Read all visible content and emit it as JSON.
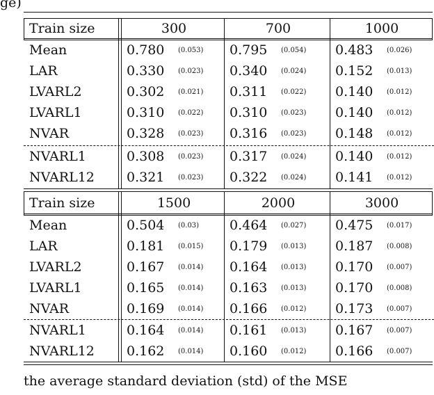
{
  "caption_top": "ge)",
  "caption_bottom": "the                average  standard  deviation  (std)  of  the  MSE",
  "tables": [
    {
      "header_label": "Train size",
      "sizes": [
        "300",
        "700",
        "1000"
      ],
      "rows": [
        {
          "label": "Mean",
          "vals": [
            "0.780",
            "0.795",
            "0.483"
          ],
          "sds": [
            "(0.053)",
            "(0.054)",
            "(0.026)"
          ]
        },
        {
          "label": "LAR",
          "vals": [
            "0.330",
            "0.340",
            "0.152"
          ],
          "sds": [
            "(0.023)",
            "(0.024)",
            "(0.013)"
          ]
        },
        {
          "label": "LVARL2",
          "vals": [
            "0.302",
            "0.311",
            "0.140"
          ],
          "sds": [
            "(0.021)",
            "(0.022)",
            "(0.012)"
          ]
        },
        {
          "label": "LVARL1",
          "vals": [
            "0.310",
            "0.310",
            "0.140"
          ],
          "sds": [
            "(0.022)",
            "(0.023)",
            "(0.012)"
          ]
        },
        {
          "label": "NVAR",
          "vals": [
            "0.328",
            "0.316",
            "0.148"
          ],
          "sds": [
            "(0.023)",
            "(0.023)",
            "(0.012)"
          ]
        },
        {
          "label": "NVARL1",
          "vals": [
            "0.308",
            "0.317",
            "0.140"
          ],
          "sds": [
            "(0.023)",
            "(0.024)",
            "(0.012)"
          ]
        },
        {
          "label": "NVARL12",
          "vals": [
            "0.321",
            "0.322",
            "0.141"
          ],
          "sds": [
            "(0.023)",
            "(0.024)",
            "(0.012)"
          ]
        }
      ]
    },
    {
      "header_label": "Train size",
      "sizes": [
        "1500",
        "2000",
        "3000"
      ],
      "rows": [
        {
          "label": "Mean",
          "vals": [
            "0.504",
            "0.464",
            "0.475"
          ],
          "sds": [
            "(0.03)",
            "(0.027)",
            "(0.017)"
          ]
        },
        {
          "label": "LAR",
          "vals": [
            "0.181",
            "0.179",
            "0.187"
          ],
          "sds": [
            "(0.015)",
            "(0.013)",
            "(0.008)"
          ]
        },
        {
          "label": "LVARL2",
          "vals": [
            "0.167",
            "0.164",
            "0.170"
          ],
          "sds": [
            "(0.014)",
            "(0.013)",
            "(0.007)"
          ]
        },
        {
          "label": "LVARL1",
          "vals": [
            "0.165",
            "0.163",
            "0.170"
          ],
          "sds": [
            "(0.014)",
            "(0.013)",
            "(0.008)"
          ]
        },
        {
          "label": "NVAR",
          "vals": [
            "0.169",
            "0.166",
            "0.173"
          ],
          "sds": [
            "(0.014)",
            "(0.012)",
            "(0.007)"
          ]
        },
        {
          "label": "NVARL1",
          "vals": [
            "0.164",
            "0.161",
            "0.167"
          ],
          "sds": [
            "(0.014)",
            "(0.013)",
            "(0.007)"
          ]
        },
        {
          "label": "NVARL12",
          "vals": [
            "0.162",
            "0.160",
            "0.166"
          ],
          "sds": [
            "(0.014)",
            "(0.012)",
            "(0.007)"
          ]
        }
      ]
    }
  ]
}
